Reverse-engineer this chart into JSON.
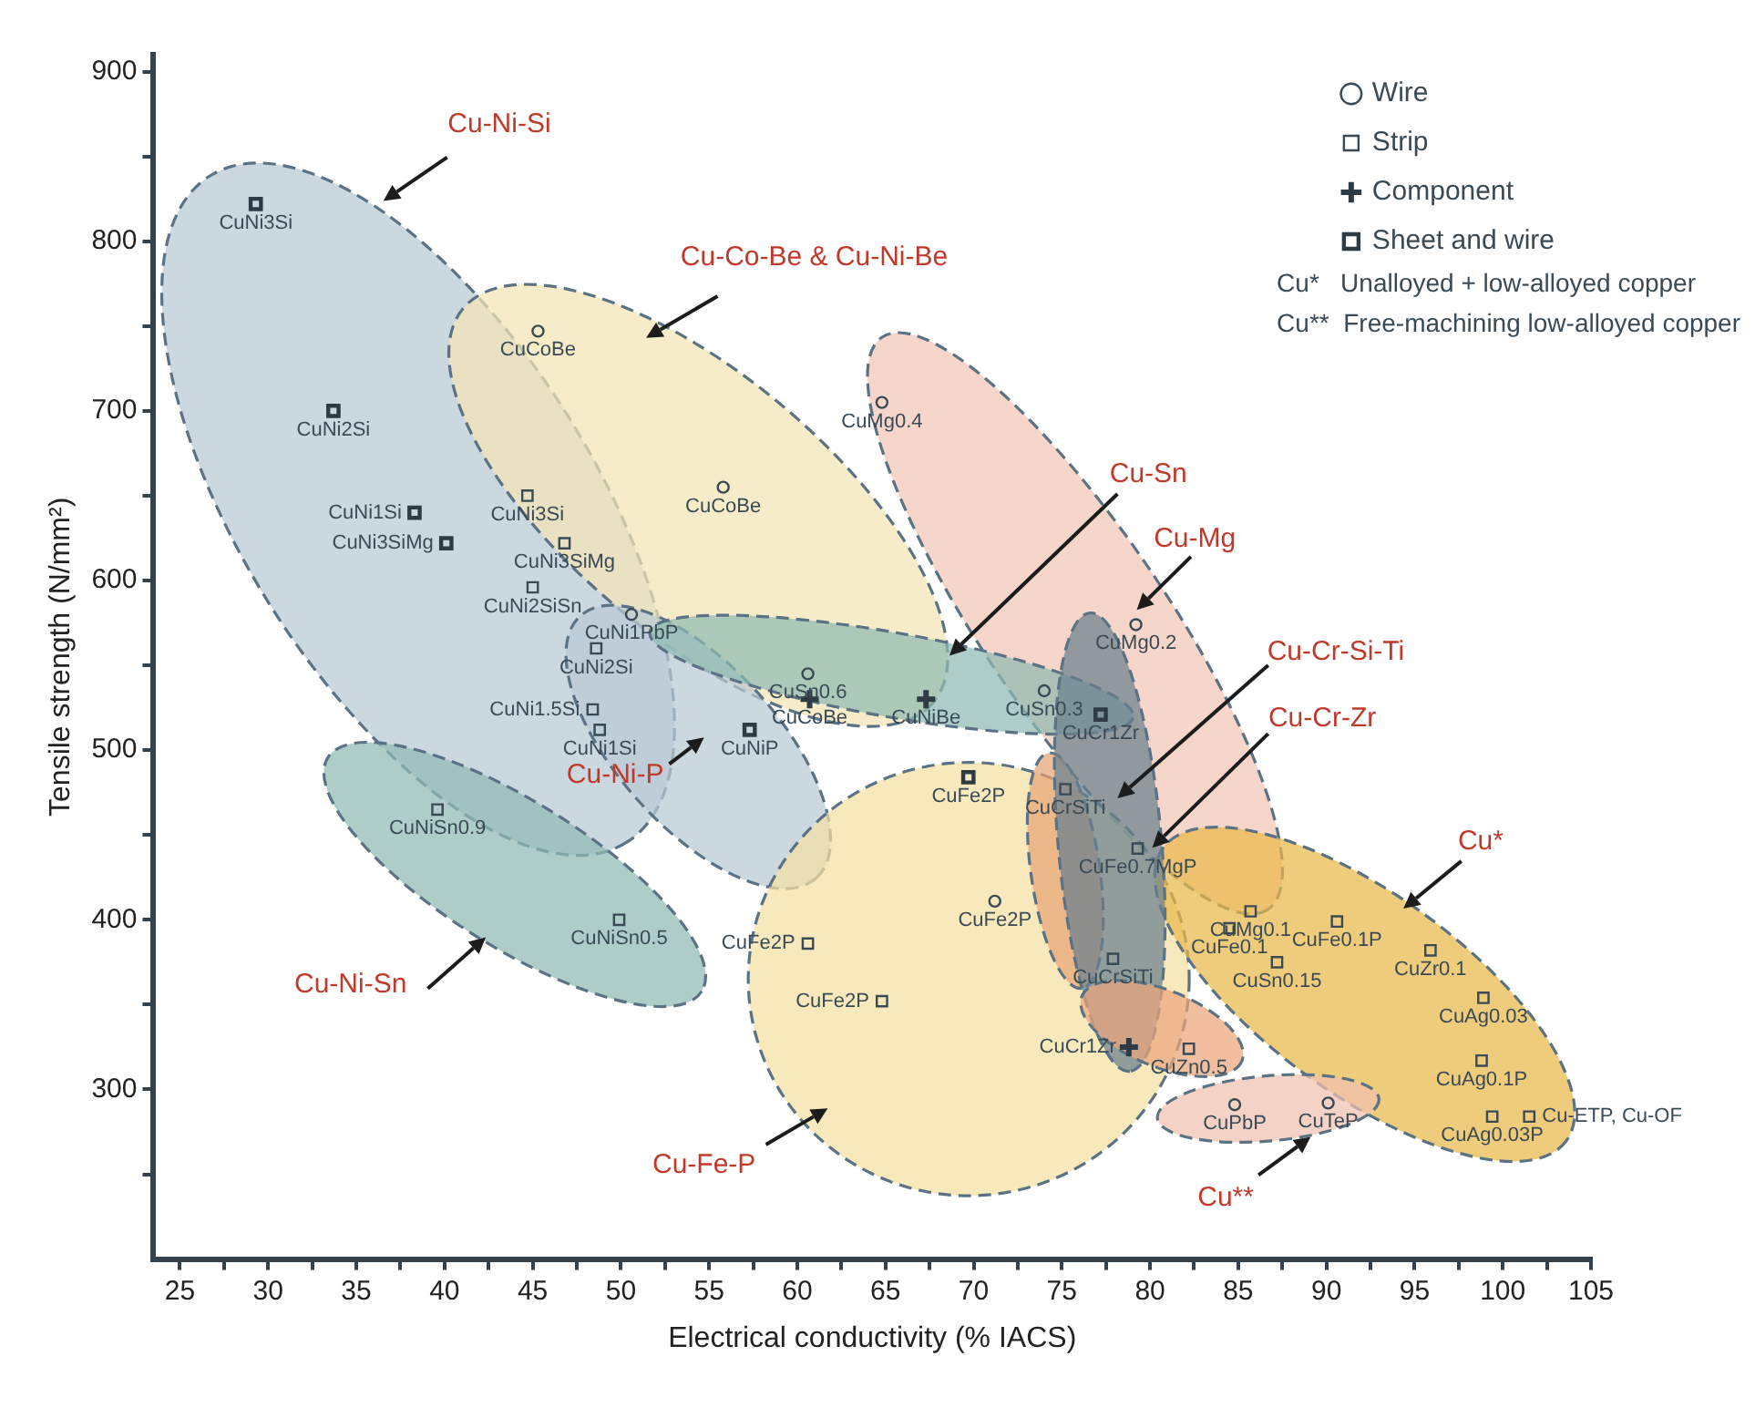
{
  "chart_data": {
    "type": "scatter",
    "xlabel": "Electrical conductivity (% IACS)",
    "ylabel": "Tensile strength (N/mm²)",
    "xlim": [
      23.5,
      105
    ],
    "ylim": [
      200,
      910
    ],
    "xticks": [
      25,
      {
        "value": 27.5,
        "label": null
      },
      30,
      {
        "value": 32.5,
        "label": null
      },
      35,
      {
        "value": 37.5,
        "label": null
      },
      40,
      {
        "value": 42.5,
        "label": null
      },
      45,
      {
        "value": 47.5,
        "label": null
      },
      50,
      {
        "value": 52.5,
        "label": null
      },
      55,
      {
        "value": 57.5,
        "label": null
      },
      60,
      {
        "value": 62.5,
        "label": null
      },
      65,
      {
        "value": 67.5,
        "label": null
      },
      70,
      {
        "value": 72.5,
        "label": null
      },
      75,
      {
        "value": 77.5,
        "label": null
      },
      80,
      {
        "value": 82.5,
        "label": null
      },
      85,
      {
        "value": 87.5,
        "label": null
      },
      90,
      {
        "value": 92.5,
        "label": null
      },
      95,
      {
        "value": 97.5,
        "label": null
      },
      100,
      {
        "value": 102.5,
        "label": null
      },
      105
    ],
    "yticks": [
      {
        "value": 250,
        "label": null
      },
      300,
      {
        "value": 350,
        "label": null
      },
      400,
      {
        "value": 450,
        "label": null
      },
      500,
      {
        "value": 550,
        "label": null
      },
      600,
      {
        "value": 650,
        "label": null
      },
      700,
      {
        "value": 750,
        "label": null
      },
      800,
      {
        "value": 850,
        "label": null
      },
      900
    ],
    "legend": "top right",
    "grid": false,
    "series": [
      {
        "name": "Wire",
        "marker": "circle",
        "color": "#3a4a55",
        "x": [
          45.3,
          55.8,
          50.6,
          64.8,
          60.6,
          74.0,
          79.2,
          71.2,
          84.8,
          90.1
        ],
        "values": [
          747,
          655,
          580,
          705,
          545,
          535,
          574,
          411,
          291,
          292
        ],
        "value_labels": [
          "CuCoBe",
          "CuCoBe",
          "CuNi1PbP",
          "CuMg0.4",
          "CuSn0.6",
          "CuSn0.3",
          "CuMg0.2",
          "CuFe2P",
          "CuPbP",
          "CuTeP"
        ]
      },
      {
        "name": "Strip",
        "marker": "square",
        "color": "#3a4a55",
        "x": [
          44.7,
          46.8,
          45.0,
          48.6,
          48.4,
          48.8,
          39.6,
          49.9,
          75.2,
          79.3,
          60.6,
          64.8,
          77.9,
          82.2,
          85.7,
          84.5,
          90.6,
          87.2,
          95.9,
          98.9,
          98.8,
          99.4,
          101.5
        ],
        "values": [
          650,
          622,
          596,
          560,
          524,
          512,
          465,
          400,
          477,
          442,
          386,
          352,
          377,
          324,
          405,
          395,
          399,
          375,
          382,
          354,
          317,
          284,
          284
        ],
        "value_labels": [
          "CuNi3Si",
          "CuNi3SiMg",
          "CuNi2SiSn",
          "CuNi2Si",
          "CuNi1.5Si",
          "CuNi1Si",
          "CuNiSn0.9",
          "CuNiSn0.5",
          "CuCrSiTi",
          "CuFe0.7MgP",
          "CuFe2P",
          "CuFe2P",
          "CuCrSiTi",
          "CuZn0.5",
          "CuMg0.1",
          "CuFe0.1",
          "CuFe0.1P",
          "CuSn0.15",
          "CuZr0.1",
          "CuAg0.03",
          "CuAg0.1P",
          "CuAg0.03P",
          "Cu-ETP, Cu-OF"
        ]
      },
      {
        "name": "Component",
        "marker": "cross",
        "color": "#2e3a44",
        "x": [
          60.7,
          67.3,
          78.8
        ],
        "values": [
          530,
          530,
          325
        ],
        "value_labels": [
          "CuCoBe",
          "CuNiBe",
          "CuCr1Zr"
        ]
      },
      {
        "name": "Sheet and wire",
        "marker": "square",
        "color": "#2e3a44",
        "x": [
          29.3,
          33.7,
          38.3,
          40.1,
          57.3,
          69.7,
          77.2
        ],
        "values": [
          822,
          700,
          640,
          622,
          512,
          484,
          521
        ],
        "value_labels": [
          "CuNi3Si",
          "CuNi2Si",
          "CuNi1Si",
          "CuNi3SiMg",
          "CuNiP",
          "CuFe2P",
          "CuCr1Zr"
        ]
      }
    ],
    "annotations": [
      "Cu-Ni-Si",
      "Cu-Co-Be & Cu-Ni-Be",
      "Cu-Sn",
      "Cu-Mg",
      "Cu-Cr-Si-Ti",
      "Cu-Cr-Zr",
      "Cu*",
      "Cu-Ni-P",
      "Cu-Ni-Sn",
      "Cu-Fe-P",
      "Cu**",
      "Cu*   Unalloyed + low-alloyed copper",
      "Cu**  Free-machining low-alloyed copper"
    ]
  }
}
